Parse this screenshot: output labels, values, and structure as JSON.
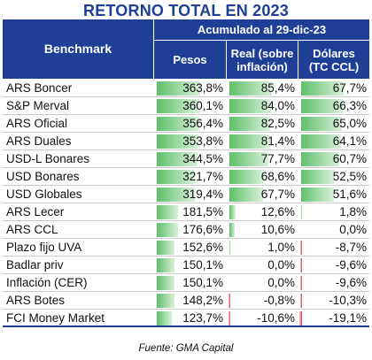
{
  "title": "RETORNO TOTAL EN 2023",
  "header": {
    "benchmark": "Benchmark",
    "accumulated": "Acumulado al 29-dic-23",
    "pesos": "Pesos",
    "real": "Real (sobre inflación)",
    "dolares": "Dólares (TC CCL)"
  },
  "rows": [
    {
      "name": "ARS Boncer",
      "pesos": "363,8%",
      "real": "85,4%",
      "dolares": "67,7%",
      "pesos_num": 363.8,
      "real_num": 85.4,
      "dolares_num": 67.7
    },
    {
      "name": "S&P Merval",
      "pesos": "360,1%",
      "real": "84,0%",
      "dolares": "66,3%",
      "pesos_num": 360.1,
      "real_num": 84.0,
      "dolares_num": 66.3
    },
    {
      "name": "ARS Oficial",
      "pesos": "356,4%",
      "real": "82,5%",
      "dolares": "65,0%",
      "pesos_num": 356.4,
      "real_num": 82.5,
      "dolares_num": 65.0
    },
    {
      "name": "ARS Duales",
      "pesos": "353,8%",
      "real": "81,4%",
      "dolares": "64,1%",
      "pesos_num": 353.8,
      "real_num": 81.4,
      "dolares_num": 64.1
    },
    {
      "name": "USD-L Bonares",
      "pesos": "344,5%",
      "real": "77,7%",
      "dolares": "60,7%",
      "pesos_num": 344.5,
      "real_num": 77.7,
      "dolares_num": 60.7
    },
    {
      "name": "USD Bonares",
      "pesos": "321,7%",
      "real": "68,6%",
      "dolares": "52,5%",
      "pesos_num": 321.7,
      "real_num": 68.6,
      "dolares_num": 52.5
    },
    {
      "name": "USD Globales",
      "pesos": "319,4%",
      "real": "67,7%",
      "dolares": "51,6%",
      "pesos_num": 319.4,
      "real_num": 67.7,
      "dolares_num": 51.6
    },
    {
      "name": "ARS Lecer",
      "pesos": "181,5%",
      "real": "12,6%",
      "dolares": "1,8%",
      "pesos_num": 181.5,
      "real_num": 12.6,
      "dolares_num": 1.8
    },
    {
      "name": "ARS CCL",
      "pesos": "176,6%",
      "real": "10,6%",
      "dolares": "0,0%",
      "pesos_num": 176.6,
      "real_num": 10.6,
      "dolares_num": 0.0
    },
    {
      "name": "Plazo fijo UVA",
      "pesos": "152,6%",
      "real": "1,0%",
      "dolares": "-8,7%",
      "pesos_num": 152.6,
      "real_num": 1.0,
      "dolares_num": -8.7
    },
    {
      "name": "Badlar priv",
      "pesos": "150,1%",
      "real": "0,0%",
      "dolares": "-9,6%",
      "pesos_num": 150.1,
      "real_num": 0.0,
      "dolares_num": -9.6
    },
    {
      "name": "Inflación (CER)",
      "pesos": "150,1%",
      "real": "0,0%",
      "dolares": "-9,6%",
      "pesos_num": 150.1,
      "real_num": 0.0,
      "dolares_num": -9.6
    },
    {
      "name": "ARS Botes",
      "pesos": "148,2%",
      "real": "-0,8%",
      "dolares": "-10,3%",
      "pesos_num": 148.2,
      "real_num": -0.8,
      "dolares_num": -10.3
    },
    {
      "name": "FCI Money Market",
      "pesos": "123,7%",
      "real": "-10,6%",
      "dolares": "-19,1%",
      "pesos_num": 123.7,
      "real_num": -10.6,
      "dolares_num": -19.1
    }
  ],
  "footer": "Fuente: GMA Capital",
  "colors": {
    "header": "#1f3f96",
    "positive_bar": "#5fc069",
    "negative_bar": "#e54848"
  }
}
